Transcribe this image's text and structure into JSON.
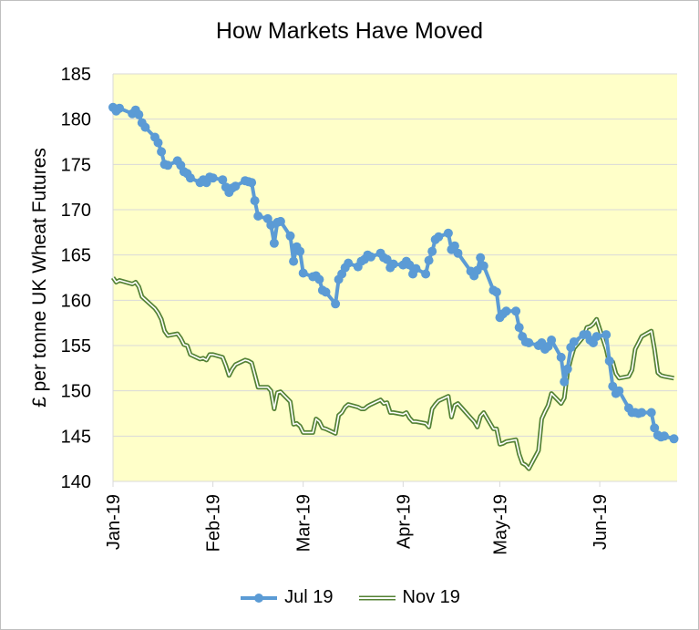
{
  "chart_data": {
    "type": "line",
    "title": "How Markets Have Moved",
    "ylabel": "£ per tonne UK Wheat Futures",
    "xlabel": "",
    "ylim": [
      140,
      185
    ],
    "yticks": [
      140,
      145,
      150,
      155,
      160,
      165,
      170,
      175,
      180,
      185
    ],
    "xlim": [
      "2019-01-01",
      "2019-06-25"
    ],
    "xticks": [
      {
        "date": "2019-01-01",
        "label": "Jan-19"
      },
      {
        "date": "2019-02-01",
        "label": "Feb-19"
      },
      {
        "date": "2019-03-01",
        "label": "Mar-19"
      },
      {
        "date": "2019-04-01",
        "label": "Apr-19"
      },
      {
        "date": "2019-05-01",
        "label": "May-19"
      },
      {
        "date": "2019-06-01",
        "label": "Jun-19"
      }
    ],
    "plot_background": "#ffffc9",
    "grid": true,
    "legend_position": "bottom",
    "series": [
      {
        "name": "Jul 19",
        "color": "#5b9bd5",
        "style": "line-with-markers",
        "points": [
          [
            "2019-01-01",
            181.3
          ],
          [
            "2019-01-02",
            180.9
          ],
          [
            "2019-01-03",
            181.2
          ],
          [
            "2019-01-07",
            180.6
          ],
          [
            "2019-01-08",
            181.0
          ],
          [
            "2019-01-09",
            180.5
          ],
          [
            "2019-01-10",
            179.6
          ],
          [
            "2019-01-11",
            179.1
          ],
          [
            "2019-01-14",
            178.0
          ],
          [
            "2019-01-15",
            177.4
          ],
          [
            "2019-01-16",
            176.4
          ],
          [
            "2019-01-17",
            175.0
          ],
          [
            "2019-01-18",
            174.9
          ],
          [
            "2019-01-21",
            175.4
          ],
          [
            "2019-01-22",
            174.9
          ],
          [
            "2019-01-23",
            174.2
          ],
          [
            "2019-01-24",
            174.0
          ],
          [
            "2019-01-25",
            173.5
          ],
          [
            "2019-01-28",
            173.0
          ],
          [
            "2019-01-29",
            173.3
          ],
          [
            "2019-01-30",
            173.0
          ],
          [
            "2019-01-31",
            173.6
          ],
          [
            "2019-02-01",
            173.5
          ],
          [
            "2019-02-04",
            173.3
          ],
          [
            "2019-02-05",
            172.5
          ],
          [
            "2019-02-06",
            171.9
          ],
          [
            "2019-02-07",
            172.4
          ],
          [
            "2019-02-08",
            172.6
          ],
          [
            "2019-02-11",
            173.2
          ],
          [
            "2019-02-12",
            173.1
          ],
          [
            "2019-02-13",
            173.0
          ],
          [
            "2019-02-14",
            171.0
          ],
          [
            "2019-02-15",
            169.3
          ],
          [
            "2019-02-18",
            169.0
          ],
          [
            "2019-02-19",
            168.3
          ],
          [
            "2019-02-20",
            166.3
          ],
          [
            "2019-02-21",
            168.6
          ],
          [
            "2019-02-22",
            168.7
          ],
          [
            "2019-02-25",
            167.1
          ],
          [
            "2019-02-26",
            164.3
          ],
          [
            "2019-02-27",
            165.9
          ],
          [
            "2019-02-28",
            165.4
          ],
          [
            "2019-03-01",
            163.0
          ],
          [
            "2019-03-04",
            162.6
          ],
          [
            "2019-03-05",
            162.7
          ],
          [
            "2019-03-06",
            162.3
          ],
          [
            "2019-03-07",
            161.1
          ],
          [
            "2019-03-08",
            160.9
          ],
          [
            "2019-03-11",
            159.6
          ],
          [
            "2019-03-12",
            162.3
          ],
          [
            "2019-03-13",
            162.9
          ],
          [
            "2019-03-14",
            163.6
          ],
          [
            "2019-03-15",
            164.1
          ],
          [
            "2019-03-18",
            163.7
          ],
          [
            "2019-03-19",
            164.3
          ],
          [
            "2019-03-20",
            164.5
          ],
          [
            "2019-03-21",
            165.0
          ],
          [
            "2019-03-22",
            164.8
          ],
          [
            "2019-03-25",
            165.2
          ],
          [
            "2019-03-26",
            164.7
          ],
          [
            "2019-03-27",
            164.5
          ],
          [
            "2019-03-28",
            163.6
          ],
          [
            "2019-03-29",
            164.0
          ],
          [
            "2019-04-01",
            163.9
          ],
          [
            "2019-04-02",
            164.3
          ],
          [
            "2019-04-03",
            163.9
          ],
          [
            "2019-04-04",
            162.9
          ],
          [
            "2019-04-05",
            163.5
          ],
          [
            "2019-04-08",
            162.9
          ],
          [
            "2019-04-09",
            164.4
          ],
          [
            "2019-04-10",
            165.4
          ],
          [
            "2019-04-11",
            166.7
          ],
          [
            "2019-04-12",
            167.0
          ],
          [
            "2019-04-15",
            167.4
          ],
          [
            "2019-04-16",
            165.6
          ],
          [
            "2019-04-17",
            166.0
          ],
          [
            "2019-04-18",
            165.2
          ],
          [
            "2019-04-22",
            163.2
          ],
          [
            "2019-04-23",
            162.7
          ],
          [
            "2019-04-24",
            163.3
          ],
          [
            "2019-04-25",
            164.7
          ],
          [
            "2019-04-26",
            163.8
          ],
          [
            "2019-04-29",
            161.1
          ],
          [
            "2019-04-30",
            160.9
          ],
          [
            "2019-05-01",
            158.1
          ],
          [
            "2019-05-02",
            158.5
          ],
          [
            "2019-05-03",
            158.8
          ],
          [
            "2019-05-06",
            158.8
          ],
          [
            "2019-05-07",
            157.0
          ],
          [
            "2019-05-08",
            156.0
          ],
          [
            "2019-05-09",
            155.4
          ],
          [
            "2019-05-10",
            155.3
          ],
          [
            "2019-05-13",
            155.0
          ],
          [
            "2019-05-14",
            155.3
          ],
          [
            "2019-05-15",
            154.6
          ],
          [
            "2019-05-16",
            154.9
          ],
          [
            "2019-05-17",
            155.6
          ],
          [
            "2019-05-20",
            153.7
          ],
          [
            "2019-05-21",
            151.0
          ],
          [
            "2019-05-22",
            152.4
          ],
          [
            "2019-05-23",
            154.8
          ],
          [
            "2019-05-24",
            155.4
          ],
          [
            "2019-05-27",
            156.2
          ],
          [
            "2019-05-28",
            156.2
          ],
          [
            "2019-05-29",
            155.6
          ],
          [
            "2019-05-30",
            155.3
          ],
          [
            "2019-05-31",
            156.0
          ],
          [
            "2019-06-03",
            156.2
          ],
          [
            "2019-06-04",
            153.3
          ],
          [
            "2019-06-05",
            150.5
          ],
          [
            "2019-06-06",
            149.7
          ],
          [
            "2019-06-07",
            150.0
          ],
          [
            "2019-06-10",
            148.1
          ],
          [
            "2019-06-11",
            147.6
          ],
          [
            "2019-06-12",
            147.6
          ],
          [
            "2019-06-13",
            147.5
          ],
          [
            "2019-06-14",
            147.6
          ],
          [
            "2019-06-17",
            147.6
          ],
          [
            "2019-06-18",
            145.9
          ],
          [
            "2019-06-19",
            145.1
          ],
          [
            "2019-06-20",
            144.9
          ],
          [
            "2019-06-21",
            145.0
          ],
          [
            "2019-06-24",
            144.7
          ]
        ]
      },
      {
        "name": "Nov 19",
        "color": "#548235",
        "style": "double-line",
        "points": [
          [
            "2019-01-01",
            162.5
          ],
          [
            "2019-01-02",
            162.0
          ],
          [
            "2019-01-03",
            162.2
          ],
          [
            "2019-01-07",
            161.8
          ],
          [
            "2019-01-08",
            162.0
          ],
          [
            "2019-01-09",
            161.5
          ],
          [
            "2019-01-10",
            160.4
          ],
          [
            "2019-01-14",
            159.1
          ],
          [
            "2019-01-15",
            158.6
          ],
          [
            "2019-01-16",
            157.9
          ],
          [
            "2019-01-17",
            156.6
          ],
          [
            "2019-01-18",
            156.1
          ],
          [
            "2019-01-21",
            156.3
          ],
          [
            "2019-01-22",
            155.8
          ],
          [
            "2019-01-23",
            155.1
          ],
          [
            "2019-01-24",
            155.0
          ],
          [
            "2019-01-25",
            154.0
          ],
          [
            "2019-01-28",
            153.5
          ],
          [
            "2019-01-29",
            153.6
          ],
          [
            "2019-01-30",
            153.4
          ],
          [
            "2019-01-31",
            154.0
          ],
          [
            "2019-02-01",
            154.0
          ],
          [
            "2019-02-04",
            153.7
          ],
          [
            "2019-02-05",
            152.8
          ],
          [
            "2019-02-06",
            151.7
          ],
          [
            "2019-02-07",
            152.4
          ],
          [
            "2019-02-08",
            152.9
          ],
          [
            "2019-02-11",
            153.4
          ],
          [
            "2019-02-12",
            153.3
          ],
          [
            "2019-02-13",
            153.1
          ],
          [
            "2019-02-14",
            151.8
          ],
          [
            "2019-02-15",
            150.4
          ],
          [
            "2019-02-18",
            150.4
          ],
          [
            "2019-02-19",
            150.0
          ],
          [
            "2019-02-20",
            148.0
          ],
          [
            "2019-02-21",
            149.8
          ],
          [
            "2019-02-22",
            149.9
          ],
          [
            "2019-02-25",
            148.8
          ],
          [
            "2019-02-26",
            146.3
          ],
          [
            "2019-02-27",
            146.4
          ],
          [
            "2019-02-28",
            146.1
          ],
          [
            "2019-03-01",
            145.4
          ],
          [
            "2019-03-04",
            145.4
          ],
          [
            "2019-03-05",
            146.9
          ],
          [
            "2019-03-06",
            146.6
          ],
          [
            "2019-03-07",
            145.9
          ],
          [
            "2019-03-08",
            145.8
          ],
          [
            "2019-03-11",
            145.3
          ],
          [
            "2019-03-12",
            147.3
          ],
          [
            "2019-03-13",
            147.6
          ],
          [
            "2019-03-14",
            148.2
          ],
          [
            "2019-03-15",
            148.5
          ],
          [
            "2019-03-18",
            148.2
          ],
          [
            "2019-03-19",
            148.0
          ],
          [
            "2019-03-20",
            148.0
          ],
          [
            "2019-03-21",
            148.3
          ],
          [
            "2019-03-22",
            148.5
          ],
          [
            "2019-03-25",
            149.0
          ],
          [
            "2019-03-26",
            148.6
          ],
          [
            "2019-03-27",
            148.7
          ],
          [
            "2019-03-28",
            147.6
          ],
          [
            "2019-03-29",
            147.6
          ],
          [
            "2019-04-01",
            147.4
          ],
          [
            "2019-04-02",
            147.6
          ],
          [
            "2019-04-03",
            147.0
          ],
          [
            "2019-04-04",
            146.6
          ],
          [
            "2019-04-05",
            146.6
          ],
          [
            "2019-04-08",
            146.4
          ],
          [
            "2019-04-09",
            146.0
          ],
          [
            "2019-04-10",
            148.0
          ],
          [
            "2019-04-11",
            148.5
          ],
          [
            "2019-04-12",
            148.9
          ],
          [
            "2019-04-15",
            149.4
          ],
          [
            "2019-04-16",
            147.1
          ],
          [
            "2019-04-17",
            148.4
          ],
          [
            "2019-04-18",
            148.6
          ],
          [
            "2019-04-22",
            147.0
          ],
          [
            "2019-04-23",
            146.6
          ],
          [
            "2019-04-24",
            146.0
          ],
          [
            "2019-04-25",
            147.2
          ],
          [
            "2019-04-26",
            147.6
          ],
          [
            "2019-04-29",
            145.8
          ],
          [
            "2019-04-30",
            145.8
          ],
          [
            "2019-05-01",
            144.1
          ],
          [
            "2019-05-02",
            144.2
          ],
          [
            "2019-05-03",
            144.4
          ],
          [
            "2019-05-06",
            144.6
          ],
          [
            "2019-05-07",
            143.0
          ],
          [
            "2019-05-08",
            142.0
          ],
          [
            "2019-05-09",
            141.8
          ],
          [
            "2019-05-10",
            141.4
          ],
          [
            "2019-05-13",
            143.4
          ],
          [
            "2019-05-14",
            146.9
          ],
          [
            "2019-05-15",
            147.7
          ],
          [
            "2019-05-16",
            148.4
          ],
          [
            "2019-05-17",
            149.7
          ],
          [
            "2019-05-20",
            148.6
          ],
          [
            "2019-05-21",
            149.2
          ],
          [
            "2019-05-22",
            152.0
          ],
          [
            "2019-05-23",
            153.5
          ],
          [
            "2019-05-24",
            154.7
          ],
          [
            "2019-05-27",
            156.0
          ],
          [
            "2019-05-28",
            157.0
          ],
          [
            "2019-05-29",
            157.1
          ],
          [
            "2019-05-30",
            157.4
          ],
          [
            "2019-05-31",
            157.9
          ],
          [
            "2019-06-03",
            154.6
          ],
          [
            "2019-06-04",
            153.0
          ],
          [
            "2019-06-05",
            153.2
          ],
          [
            "2019-06-06",
            151.9
          ],
          [
            "2019-06-07",
            151.4
          ],
          [
            "2019-06-10",
            151.6
          ],
          [
            "2019-06-11",
            152.3
          ],
          [
            "2019-06-12",
            154.6
          ],
          [
            "2019-06-13",
            155.3
          ],
          [
            "2019-06-14",
            156.0
          ],
          [
            "2019-06-17",
            156.6
          ],
          [
            "2019-06-18",
            154.6
          ],
          [
            "2019-06-19",
            152.0
          ],
          [
            "2019-06-20",
            151.7
          ],
          [
            "2019-06-21",
            151.6
          ],
          [
            "2019-06-24",
            151.4
          ]
        ]
      }
    ]
  }
}
